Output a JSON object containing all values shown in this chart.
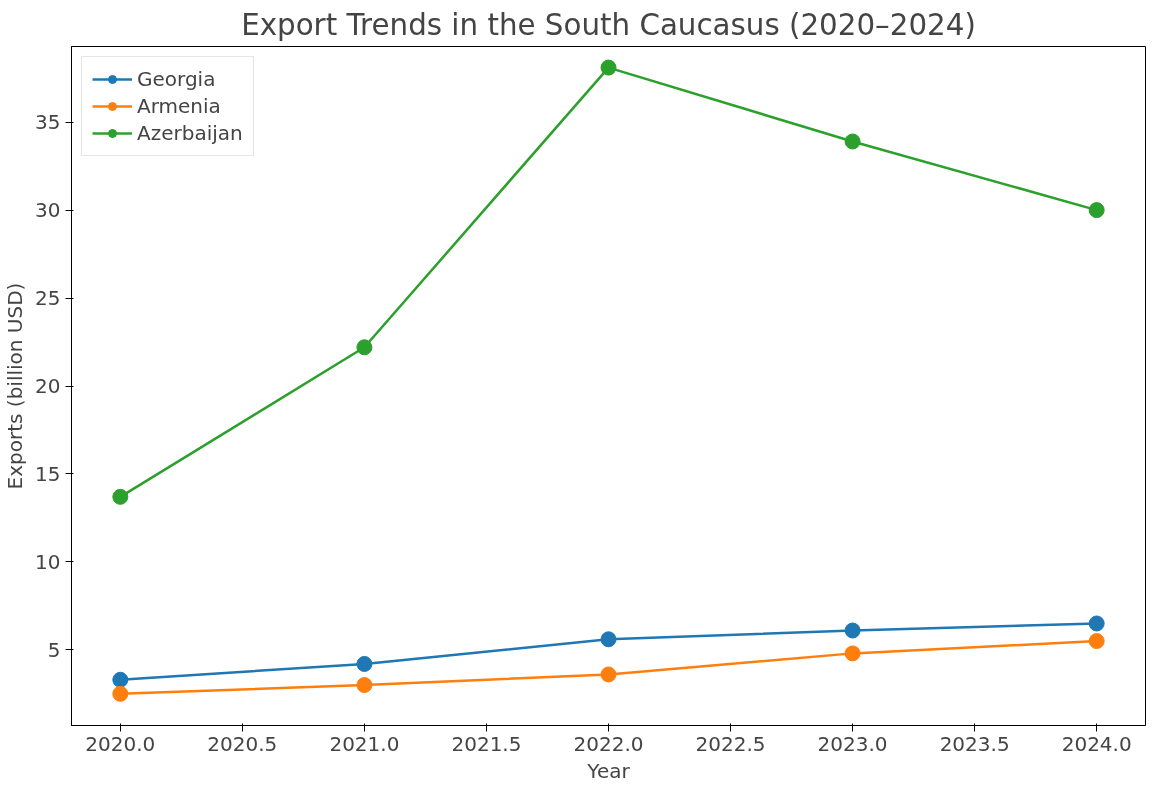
{
  "chart_data": {
    "type": "line",
    "title": "Export Trends in the South Caucasus (2020–2024)",
    "xlabel": "Year",
    "ylabel": "Exports (billion USD)",
    "x": [
      2020,
      2021,
      2022,
      2023,
      2024
    ],
    "series": [
      {
        "name": "Georgia",
        "color": "#1f77b4",
        "values": [
          3.3,
          4.2,
          5.6,
          6.1,
          6.5
        ]
      },
      {
        "name": "Armenia",
        "color": "#ff7f0e",
        "values": [
          2.5,
          3.0,
          3.6,
          4.8,
          5.5
        ]
      },
      {
        "name": "Azerbaijan",
        "color": "#2ca02c",
        "values": [
          13.7,
          22.2,
          38.1,
          33.9,
          30.0
        ]
      }
    ],
    "xlim": [
      2019.8,
      2024.2
    ],
    "ylim": [
      0.7,
      39.3
    ],
    "xticks": [
      {
        "value": 2020,
        "label": "2020.0"
      },
      {
        "value": 2020.5,
        "label": "2020.5"
      },
      {
        "value": 2021,
        "label": "2021.0"
      },
      {
        "value": 2021.5,
        "label": "2021.5"
      },
      {
        "value": 2022,
        "label": "2022.0"
      },
      {
        "value": 2022.5,
        "label": "2022.5"
      },
      {
        "value": 2023,
        "label": "2023.0"
      },
      {
        "value": 2023.5,
        "label": "2023.5"
      },
      {
        "value": 2024,
        "label": "2024.0"
      }
    ],
    "yticks": [
      5,
      10,
      15,
      20,
      25,
      30,
      35
    ],
    "legend": "top left",
    "grid": false,
    "marker": "circle",
    "line_style": "solid"
  }
}
